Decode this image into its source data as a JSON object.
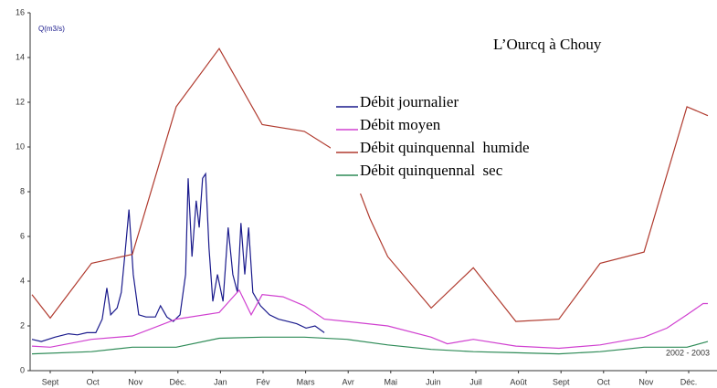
{
  "chart_data": {
    "type": "line",
    "title": "L’Ourcq à Chouy",
    "y_label": "Q(m3/s)",
    "annotation": "2002 - 2003",
    "xlim": [
      0,
      16.1
    ],
    "xticks": [
      {
        "value": 0.5,
        "label": "Sept"
      },
      {
        "value": 1.5,
        "label": "Oct"
      },
      {
        "value": 2.5,
        "label": "Nov"
      },
      {
        "value": 3.5,
        "label": "Déc."
      },
      {
        "value": 4.5,
        "label": "Jan"
      },
      {
        "value": 5.5,
        "label": "Fév"
      },
      {
        "value": 6.5,
        "label": "Mars"
      },
      {
        "value": 7.5,
        "label": "Avr"
      },
      {
        "value": 8.5,
        "label": "Mai"
      },
      {
        "value": 9.5,
        "label": "Juin"
      },
      {
        "value": 10.5,
        "label": "Juil"
      },
      {
        "value": 11.5,
        "label": "Août"
      },
      {
        "value": 12.5,
        "label": "Sept"
      },
      {
        "value": 13.5,
        "label": "Oct"
      },
      {
        "value": 14.5,
        "label": "Nov"
      },
      {
        "value": 15.5,
        "label": "Déc."
      }
    ],
    "ylim": [
      0,
      16
    ],
    "yticks": [
      0,
      2,
      4,
      6,
      8,
      10,
      12,
      14,
      16
    ],
    "series": [
      {
        "name": "Débit journalier",
        "color": "#1a1a8c",
        "x": [
          0.07,
          0.29,
          0.61,
          0.93,
          1.14,
          1.36,
          1.57,
          1.72,
          1.83,
          1.92,
          2.07,
          2.17,
          2.26,
          2.35,
          2.45,
          2.58,
          2.75,
          2.97,
          3.09,
          3.24,
          3.39,
          3.55,
          3.68,
          3.74,
          3.83,
          3.93,
          4.0,
          4.08,
          4.15,
          4.23,
          4.32,
          4.43,
          4.56,
          4.68,
          4.79,
          4.9,
          4.98,
          5.07,
          5.16,
          5.26,
          5.44,
          5.65,
          5.86,
          6.08,
          6.29,
          6.51,
          6.72,
          6.94
        ],
        "values": [
          1.4,
          1.3,
          1.5,
          1.65,
          1.6,
          1.7,
          1.7,
          2.3,
          3.7,
          2.5,
          2.8,
          3.5,
          5.3,
          7.2,
          4.3,
          2.5,
          2.4,
          2.4,
          2.9,
          2.4,
          2.2,
          2.5,
          4.3,
          8.6,
          5.1,
          7.6,
          6.4,
          8.6,
          8.8,
          5.5,
          3.1,
          4.3,
          3.1,
          6.4,
          4.3,
          3.5,
          6.6,
          4.3,
          6.4,
          3.5,
          2.9,
          2.5,
          2.3,
          2.2,
          2.1,
          1.9,
          2.0,
          1.7
        ]
      },
      {
        "name": "Débit moyen",
        "color": "#d040d0",
        "x": [
          0.07,
          0.5,
          1.47,
          2.43,
          3.46,
          4.47,
          4.94,
          5.22,
          5.48,
          5.97,
          6.47,
          6.94,
          7.47,
          8.43,
          9.45,
          9.83,
          10.44,
          11.44,
          12.45,
          13.42,
          14.45,
          14.99,
          15.46,
          15.84,
          15.95
        ],
        "values": [
          1.1,
          1.05,
          1.4,
          1.55,
          2.3,
          2.6,
          3.6,
          2.5,
          3.4,
          3.3,
          2.9,
          2.3,
          2.2,
          2.0,
          1.5,
          1.2,
          1.4,
          1.1,
          1.0,
          1.15,
          1.5,
          1.9,
          2.5,
          3.0,
          3.0
        ]
      },
      {
        "name": "Débit quinquennal  humide",
        "color": "#b03a2e",
        "x": [
          0.07,
          0.5,
          1.47,
          2.43,
          3.46,
          4.47,
          5.48,
          6.47,
          7.47,
          8.01,
          8.43,
          9.45,
          10.44,
          11.44,
          12.45,
          13.42,
          14.45,
          15.46,
          15.95
        ],
        "values": [
          3.4,
          2.35,
          4.8,
          5.2,
          11.8,
          14.4,
          11.0,
          10.7,
          9.5,
          6.8,
          5.1,
          2.8,
          4.6,
          2.2,
          2.3,
          4.8,
          5.3,
          11.8,
          11.4
        ]
      },
      {
        "name": "Débit quinquennal  sec",
        "color": "#2e8b57",
        "x": [
          0.07,
          1.47,
          2.43,
          3.46,
          4.47,
          5.48,
          6.47,
          7.47,
          8.43,
          9.45,
          10.44,
          11.44,
          12.45,
          13.42,
          14.45,
          15.46,
          15.95
        ],
        "values": [
          0.75,
          0.85,
          1.05,
          1.05,
          1.45,
          1.5,
          1.5,
          1.4,
          1.15,
          0.95,
          0.85,
          0.8,
          0.75,
          0.85,
          1.05,
          1.05,
          1.3
        ]
      }
    ]
  }
}
